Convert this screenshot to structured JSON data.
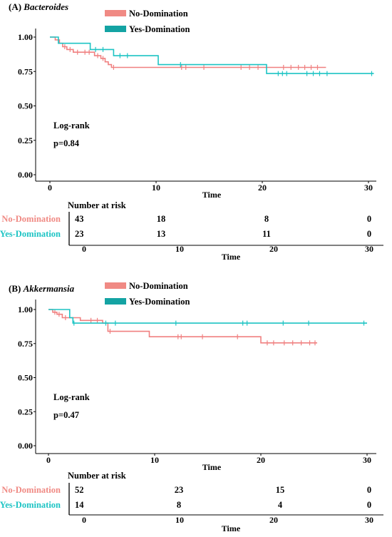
{
  "colors": {
    "no_domination": "#F08080",
    "yes_domination": "#1DC4C4",
    "no_domination_legend": "#F08A84",
    "yes_domination_legend": "#14A3A3"
  },
  "chart_data": [
    {
      "type": "line",
      "subtype": "kaplan-meier",
      "panel_label": "(A) ",
      "title": "Bacteroides",
      "xlabel": "Time",
      "ylabel": "",
      "xlim": [
        0,
        30
      ],
      "ylim": [
        0,
        1
      ],
      "xticks": [
        "0",
        "10",
        "20",
        "30"
      ],
      "yticks": [
        "0.00",
        "0.25",
        "0.50",
        "0.75",
        "1.00"
      ],
      "annotation_lines": [
        "Log-rank",
        "p=0.84"
      ],
      "legend": {
        "placement": "top-center",
        "entries": [
          "No-Domination",
          "Yes-Domination"
        ]
      },
      "series": [
        {
          "name": "No-Domination",
          "steps": [
            [
              0,
              1.0
            ],
            [
              0.5,
              0.98
            ],
            [
              0.9,
              0.955
            ],
            [
              1.2,
              0.93
            ],
            [
              1.6,
              0.91
            ],
            [
              2.2,
              0.89
            ],
            [
              4.2,
              0.865
            ],
            [
              4.8,
              0.845
            ],
            [
              5.2,
              0.82
            ],
            [
              5.5,
              0.8
            ],
            [
              5.8,
              0.78
            ],
            [
              20.5,
              0.78
            ],
            [
              26,
              0.78
            ]
          ],
          "censors": [
            1.4,
            1.9,
            2.6,
            3.3,
            3.7,
            4.5,
            5.0,
            6.0,
            12.4,
            12.8,
            14.5,
            18.0,
            18.8,
            19.6,
            22.0,
            22.7,
            23.4,
            24.0,
            24.6,
            25.2
          ]
        },
        {
          "name": "Yes-Domination",
          "steps": [
            [
              0,
              1.0
            ],
            [
              0.8,
              0.955
            ],
            [
              3.8,
              0.91
            ],
            [
              6.0,
              0.865
            ],
            [
              10.2,
              0.8
            ],
            [
              20.4,
              0.735
            ],
            [
              30.5,
              0.735
            ]
          ],
          "censors": [
            4.3,
            5.0,
            6.6,
            7.3,
            12.3,
            21.5,
            21.9,
            22.3,
            24.2,
            24.8,
            25.4,
            26.1,
            30.3
          ]
        }
      ],
      "risk_table": {
        "title": "Number at risk",
        "xlabel": "Time",
        "times": [
          "0",
          "10",
          "20",
          "30"
        ],
        "rows": [
          {
            "group": "No-Domination",
            "values": [
              "43",
              "18",
              "8",
              "0"
            ]
          },
          {
            "group": "Yes-Domination",
            "values": [
              "23",
              "13",
              "11",
              "0"
            ]
          }
        ]
      }
    },
    {
      "type": "line",
      "subtype": "kaplan-meier",
      "panel_label": "(B) ",
      "title": "Akkermansia",
      "xlabel": "Time",
      "ylabel": "",
      "xlim": [
        0,
        30
      ],
      "ylim": [
        0,
        1
      ],
      "xticks": [
        "0",
        "10",
        "20",
        "30"
      ],
      "yticks": [
        "0.00",
        "0.25",
        "0.50",
        "0.75",
        "1.00"
      ],
      "annotation_lines": [
        "Log-rank",
        "p=0.47"
      ],
      "legend": {
        "placement": "top-center",
        "entries": [
          "No-Domination",
          "Yes-Domination"
        ]
      },
      "series": [
        {
          "name": "No-Domination",
          "steps": [
            [
              0,
              1.0
            ],
            [
              0.4,
              0.98
            ],
            [
              0.8,
              0.965
            ],
            [
              1.3,
              0.94
            ],
            [
              3.0,
              0.92
            ],
            [
              5.1,
              0.9
            ],
            [
              5.6,
              0.84
            ],
            [
              9.5,
              0.8
            ],
            [
              20.0,
              0.755
            ],
            [
              25.3,
              0.755
            ]
          ],
          "censors": [
            0.6,
            1.0,
            1.6,
            4.0,
            4.6,
            5.8,
            12.2,
            12.5,
            14.5,
            17.8,
            20.6,
            21.2,
            22.2,
            23.0,
            23.8,
            24.6,
            25.1
          ]
        },
        {
          "name": "Yes-Domination",
          "steps": [
            [
              0,
              1.0
            ],
            [
              2.0,
              0.94
            ],
            [
              2.3,
              0.9
            ],
            [
              5.3,
              0.9
            ],
            [
              30.0,
              0.9
            ]
          ],
          "censors": [
            2.4,
            5.4,
            6.3,
            12.0,
            18.3,
            18.7,
            22.1,
            24.5,
            29.7
          ]
        }
      ],
      "risk_table": {
        "title": "Number at risk",
        "xlabel": "Time",
        "times": [
          "0",
          "10",
          "20",
          "30"
        ],
        "rows": [
          {
            "group": "No-Domination",
            "values": [
              "52",
              "23",
              "15",
              "0"
            ]
          },
          {
            "group": "Yes-Domination",
            "values": [
              "14",
              "8",
              "4",
              "0"
            ]
          }
        ]
      }
    }
  ]
}
